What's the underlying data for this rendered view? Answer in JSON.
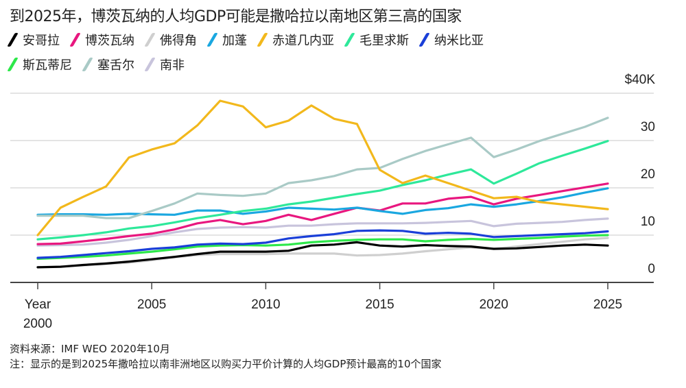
{
  "title": "到2025年，博茨瓦纳的人均GDP可能是撒哈拉以南地区第三高的国家",
  "footnotes": {
    "source": "资料来源：IMF WEO 2020年10月",
    "note": "注：显示的是到2025年撒哈拉以南非洲地区以购买力平价计算的人均GDP预计最高的10个国家"
  },
  "chart_data": {
    "type": "line",
    "title": "到2025年，博茨瓦纳的人均GDP可能是撒哈拉以南地区第三高的国家",
    "x": [
      2000,
      2001,
      2002,
      2003,
      2004,
      2005,
      2006,
      2007,
      2008,
      2009,
      2010,
      2011,
      2012,
      2013,
      2014,
      2015,
      2016,
      2017,
      2018,
      2019,
      2020,
      2021,
      2022,
      2023,
      2024,
      2025
    ],
    "xticks": [
      2000,
      2005,
      2010,
      2015,
      2020,
      2025
    ],
    "xtick_labels": [
      "Year\n2000",
      "2005",
      "2010",
      "2015",
      "2020",
      "2025"
    ],
    "yticks": [
      0,
      10,
      20,
      30,
      40
    ],
    "ytick_labels": [
      "0",
      "10",
      "20",
      "30",
      "$40K"
    ],
    "ylim": [
      0,
      40
    ],
    "y_axis_side": "right",
    "grid": true,
    "legend_position": "top",
    "series": [
      {
        "name": "安哥拉",
        "color": "#000000",
        "values": [
          3.2,
          3.3,
          3.7,
          4.0,
          4.4,
          4.9,
          5.4,
          6.0,
          6.5,
          6.5,
          6.5,
          6.7,
          7.8,
          8.0,
          8.5,
          7.8,
          7.6,
          7.9,
          7.7,
          7.6,
          7.1,
          7.2,
          7.5,
          7.8,
          8.0,
          7.8
        ]
      },
      {
        "name": "博茨瓦纳",
        "color": "#e8177f",
        "values": [
          8.1,
          8.2,
          8.7,
          9.2,
          9.8,
          10.3,
          11.2,
          12.5,
          13.2,
          12.3,
          13.0,
          14.3,
          13.2,
          14.5,
          15.8,
          15.2,
          16.7,
          16.7,
          17.7,
          18.1,
          16.5,
          17.7,
          18.5,
          19.3,
          20.1,
          20.9
        ]
      },
      {
        "name": "佛得角",
        "color": "#cfcfcf",
        "values": [
          3.2,
          3.4,
          3.6,
          3.9,
          4.2,
          4.7,
          5.3,
          5.8,
          6.0,
          6.0,
          6.0,
          6.1,
          6.1,
          6.1,
          5.7,
          5.8,
          6.1,
          6.6,
          7.0,
          7.4,
          7.1,
          7.6,
          8.1,
          8.6,
          9.1,
          9.4
        ]
      },
      {
        "name": "加蓬",
        "color": "#1aa7e0",
        "values": [
          14.3,
          14.4,
          14.4,
          14.3,
          14.5,
          14.4,
          14.3,
          15.2,
          15.2,
          14.5,
          15.0,
          15.8,
          15.6,
          15.4,
          15.8,
          15.1,
          14.5,
          15.3,
          15.7,
          16.5,
          16.0,
          16.5,
          17.2,
          18.0,
          19.0,
          19.9
        ]
      },
      {
        "name": "赤道几内亚",
        "color": "#f2b81c",
        "values": [
          10.0,
          15.8,
          18.1,
          20.3,
          26.4,
          28.1,
          29.4,
          33.2,
          38.4,
          37.2,
          32.8,
          34.2,
          37.4,
          34.6,
          33.5,
          23.8,
          21.0,
          22.6,
          21.0,
          19.4,
          17.8,
          18.1,
          17.0,
          16.5,
          16.0,
          15.5
        ]
      },
      {
        "name": "毛里求斯",
        "color": "#2ee89a",
        "values": [
          9.1,
          9.5,
          10.0,
          10.6,
          11.4,
          11.9,
          12.7,
          13.6,
          14.3,
          15.1,
          15.6,
          16.5,
          17.1,
          17.9,
          18.7,
          19.4,
          20.6,
          21.6,
          22.8,
          23.9,
          20.9,
          23.0,
          25.2,
          26.8,
          28.3,
          29.9
        ]
      },
      {
        "name": "纳米比亚",
        "color": "#1a3fd8",
        "values": [
          5.2,
          5.4,
          5.8,
          6.2,
          6.6,
          7.1,
          7.4,
          8.0,
          8.2,
          8.1,
          8.4,
          9.3,
          9.8,
          10.2,
          10.9,
          11.0,
          10.9,
          10.3,
          10.5,
          10.3,
          9.6,
          9.8,
          10.0,
          10.2,
          10.4,
          10.8
        ]
      },
      {
        "name": "斯瓦蒂尼",
        "color": "#2de84a",
        "values": [
          5.0,
          5.2,
          5.4,
          5.7,
          6.1,
          6.5,
          7.0,
          7.6,
          7.8,
          7.9,
          7.8,
          8.0,
          8.5,
          8.8,
          9.0,
          9.1,
          9.1,
          8.7,
          9.0,
          9.2,
          9.0,
          9.2,
          9.4,
          9.7,
          9.9,
          10.0
        ]
      },
      {
        "name": "塞舌尔",
        "color": "#a9cac6",
        "values": [
          14.1,
          14.1,
          14.1,
          13.6,
          13.6,
          15.1,
          16.7,
          18.8,
          18.5,
          18.3,
          18.8,
          21.0,
          21.6,
          22.5,
          23.9,
          24.2,
          26.1,
          27.8,
          29.2,
          30.6,
          26.5,
          28.1,
          29.9,
          31.4,
          32.9,
          34.8
        ]
      },
      {
        "name": "南非",
        "color": "#c8c4dc",
        "values": [
          7.8,
          7.9,
          8.0,
          8.4,
          9.0,
          9.8,
          10.6,
          11.3,
          11.6,
          11.7,
          11.6,
          12.0,
          12.0,
          12.3,
          12.5,
          12.5,
          12.5,
          12.6,
          12.8,
          13.0,
          11.9,
          12.4,
          12.6,
          12.8,
          13.2,
          13.5
        ]
      }
    ]
  }
}
